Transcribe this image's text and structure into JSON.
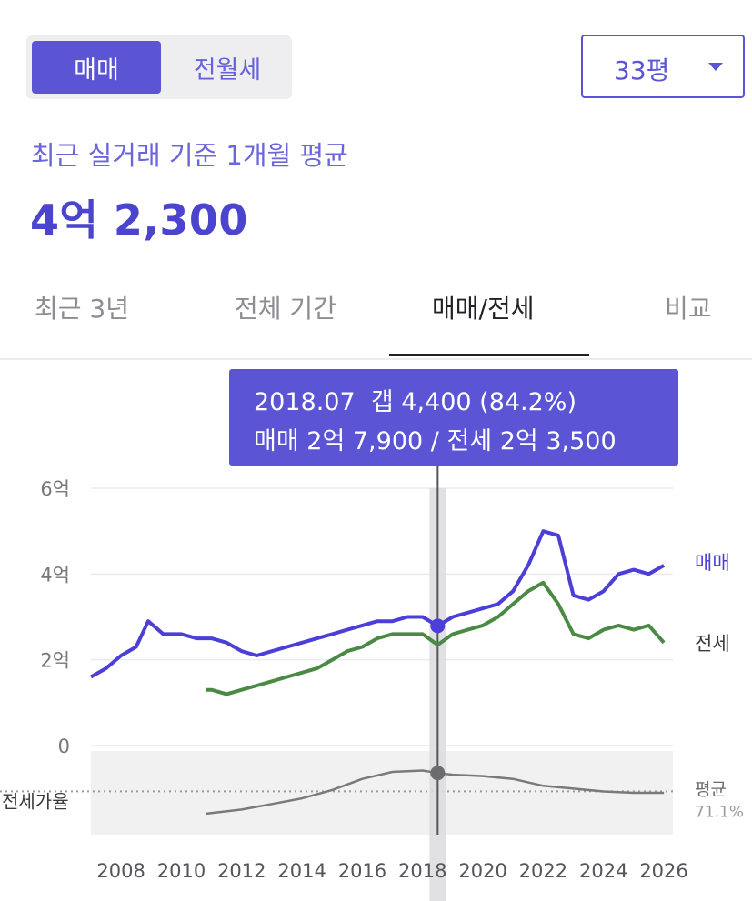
{
  "deal_toggle": {
    "options": [
      "매매",
      "전월세"
    ],
    "selected": "매매"
  },
  "area_select": {
    "value": "33평"
  },
  "price_info": {
    "subtitle": "최근 실거래 기준 1개월 평균",
    "value": "4억 2,300"
  },
  "tabs": [
    {
      "label": "최근 3년",
      "active": false
    },
    {
      "label": "전체 기간",
      "active": false
    },
    {
      "label": "매매/전세",
      "active": true
    },
    {
      "label": "비교",
      "active": false
    }
  ],
  "tooltip": {
    "date": "2018.07",
    "gap_label": "갭",
    "gap_value": "4,400",
    "gap_ratio": "(84.2%)",
    "sale_label": "매매",
    "sale_value": "2억 7,900",
    "jeonse_label": "전세",
    "jeonse_value": "2억 3,500"
  },
  "colors": {
    "accent": "#5b55d6",
    "sale": "#4b3fd8",
    "jeonse": "#4b8a45",
    "ratio": "#7a7a7a"
  },
  "chart_data": [
    {
      "type": "line",
      "xlim": [
        2007,
        2026.3
      ],
      "ylim": [
        0,
        6
      ],
      "y_ticks": [
        "6억",
        "4억",
        "2억",
        "0"
      ],
      "y_tick_values": [
        6,
        4,
        2,
        0
      ],
      "x_ticks": [
        "2008",
        "2010",
        "2012",
        "2014",
        "2016",
        "2018",
        "2020",
        "2022",
        "2024",
        "2026"
      ],
      "x_tick_values": [
        2008,
        2010,
        2012,
        2014,
        2016,
        2018,
        2020,
        2022,
        2024,
        2026
      ],
      "highlight_x": 2018.5,
      "series": [
        {
          "name": "매매",
          "color": "#4b3fd8",
          "x": [
            2007.0,
            2007.5,
            2008.0,
            2008.5,
            2008.9,
            2009.4,
            2010.0,
            2010.5,
            2011.0,
            2011.5,
            2012.0,
            2012.5,
            2013.0,
            2013.5,
            2014.0,
            2014.5,
            2015.0,
            2015.5,
            2016.0,
            2016.5,
            2017.0,
            2017.5,
            2018.0,
            2018.5,
            2019.0,
            2019.5,
            2020.0,
            2020.5,
            2021.0,
            2021.5,
            2022.0,
            2022.5,
            2023.0,
            2023.5,
            2024.0,
            2024.5,
            2025.0,
            2025.5,
            2026.0
          ],
          "y": [
            1.6,
            1.8,
            2.1,
            2.3,
            2.9,
            2.6,
            2.6,
            2.5,
            2.5,
            2.4,
            2.2,
            2.1,
            2.2,
            2.3,
            2.4,
            2.5,
            2.6,
            2.7,
            2.8,
            2.9,
            2.9,
            3.0,
            3.0,
            2.79,
            3.0,
            3.1,
            3.2,
            3.3,
            3.6,
            4.2,
            5.0,
            4.9,
            3.5,
            3.4,
            3.6,
            4.0,
            4.1,
            4.0,
            4.2
          ]
        },
        {
          "name": "전세",
          "color": "#4b8a45",
          "x": [
            2010.8,
            2011.0,
            2011.5,
            2012.0,
            2012.5,
            2013.0,
            2013.5,
            2014.0,
            2014.5,
            2015.0,
            2015.5,
            2016.0,
            2016.5,
            2017.0,
            2017.5,
            2018.0,
            2018.5,
            2019.0,
            2019.5,
            2020.0,
            2020.5,
            2021.0,
            2021.5,
            2022.0,
            2022.5,
            2023.0,
            2023.5,
            2024.0,
            2024.5,
            2025.0,
            2025.5,
            2026.0
          ],
          "y": [
            1.3,
            1.3,
            1.2,
            1.3,
            1.4,
            1.5,
            1.6,
            1.7,
            1.8,
            2.0,
            2.2,
            2.3,
            2.5,
            2.6,
            2.6,
            2.6,
            2.35,
            2.6,
            2.7,
            2.8,
            3.0,
            3.3,
            3.6,
            3.8,
            3.3,
            2.6,
            2.5,
            2.7,
            2.8,
            2.7,
            2.8,
            2.4
          ]
        },
        {
          "name": "전세가율",
          "color": "#7a7a7a",
          "x": [
            2010.8,
            2012.0,
            2013.0,
            2014.0,
            2015.0,
            2016.0,
            2017.0,
            2018.0,
            2018.5,
            2019.0,
            2020.0,
            2021.0,
            2022.0,
            2023.0,
            2024.0,
            2025.0,
            2026.0
          ],
          "y": [
            55,
            58,
            62,
            66,
            72,
            80,
            85,
            86,
            84.2,
            83,
            82,
            80,
            75,
            73,
            71,
            70,
            70
          ]
        }
      ],
      "series_labels": {
        "sale": "매매",
        "jeonse": "전세"
      },
      "ratio_panel": {
        "label": "전세가율",
        "avg_label": "평균",
        "avg_value": "71.1%",
        "avg": 71.1,
        "ylim": [
          40,
          100
        ]
      }
    }
  ]
}
